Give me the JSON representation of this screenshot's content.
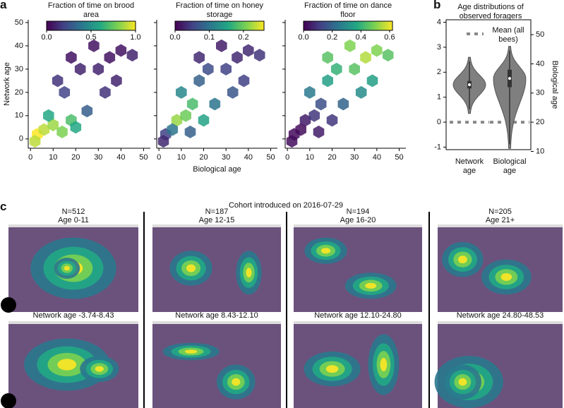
{
  "chart_data": [
    {
      "type": "hexbin",
      "colorbar_title": "Fraction of time on brood area",
      "ylabel": "Network age",
      "xlim": [
        -1,
        53
      ],
      "ylim": [
        -4,
        51.2
      ],
      "xticks": [
        0,
        10,
        20,
        30,
        40,
        50
      ],
      "yticks": [
        0,
        10,
        20,
        30,
        40,
        50
      ],
      "ytick_labels": true,
      "colormap": "viridis",
      "clim": [
        0,
        1
      ],
      "cticks": [
        {
          "value": 0,
          "label": "0.0"
        },
        0.5,
        {
          "value": 1,
          "label": "1.0"
        }
      ],
      "x": [
        3,
        6,
        10,
        14,
        18,
        8,
        20,
        25,
        15,
        30,
        35,
        40,
        22,
        28,
        45,
        12,
        38,
        2,
        33,
        18
      ],
      "y": [
        2,
        4,
        6,
        3,
        8,
        10,
        5,
        12,
        20,
        30,
        35,
        38,
        30,
        40,
        36,
        25,
        25,
        -1,
        20,
        35
      ],
      "values": [
        1.0,
        0.9,
        0.85,
        0.8,
        0.7,
        0.6,
        0.6,
        0.3,
        0.2,
        0.1,
        0.05,
        0.05,
        0.1,
        0.05,
        0.1,
        0.15,
        0.1,
        0.9,
        0.15,
        0.05
      ]
    },
    {
      "type": "hexbin",
      "colorbar_title": "Fraction of time on honey storage",
      "xlabel": "Biological age",
      "xlim": [
        -1,
        53
      ],
      "ylim": [
        -4,
        51.2
      ],
      "xticks": [
        0,
        10,
        20,
        30,
        40,
        50
      ],
      "yticks": [
        0,
        10,
        20,
        30,
        40,
        50
      ],
      "ytick_labels": false,
      "colormap": "viridis",
      "clim": [
        0,
        0.26
      ],
      "cticks": [
        {
          "value": 0,
          "label": "0.0"
        },
        0.1,
        0.2
      ],
      "x": [
        3,
        8,
        12,
        15,
        10,
        20,
        25,
        6,
        18,
        30,
        35,
        40,
        22,
        28,
        45,
        14,
        38,
        2,
        33,
        18
      ],
      "y": [
        2,
        8,
        10,
        15,
        20,
        8,
        15,
        4,
        25,
        30,
        35,
        38,
        30,
        40,
        36,
        3,
        25,
        -1,
        20,
        35
      ],
      "values": [
        0.05,
        0.22,
        0.2,
        0.18,
        0.12,
        0.15,
        0.1,
        0.1,
        0.08,
        0.05,
        0.03,
        0.03,
        0.06,
        0.02,
        0.04,
        0.08,
        0.05,
        0.03,
        0.07,
        0.03
      ]
    },
    {
      "type": "hexbin",
      "colorbar_title": "Fraction of time on dance floor",
      "xlim": [
        -1,
        53
      ],
      "ylim": [
        -4,
        51.2
      ],
      "xticks": [
        0,
        10,
        20,
        30,
        40,
        50
      ],
      "yticks": [
        0,
        10,
        20,
        30,
        40,
        50
      ],
      "ytick_labels": false,
      "colormap": "viridis",
      "clim": [
        0,
        0.62
      ],
      "cticks": [
        {
          "value": 0,
          "label": "0.0"
        },
        0.2,
        0.4,
        0.6
      ],
      "x": [
        3,
        8,
        12,
        15,
        10,
        20,
        25,
        6,
        18,
        30,
        35,
        40,
        22,
        28,
        45,
        14,
        38,
        2,
        33,
        18
      ],
      "y": [
        2,
        8,
        10,
        15,
        20,
        8,
        15,
        4,
        25,
        30,
        35,
        38,
        30,
        40,
        36,
        3,
        25,
        -1,
        20,
        35
      ],
      "values": [
        0.02,
        0.05,
        0.1,
        0.15,
        0.25,
        0.1,
        0.2,
        0.02,
        0.35,
        0.45,
        0.55,
        0.5,
        0.4,
        0.5,
        0.45,
        0.05,
        0.35,
        0.02,
        0.3,
        0.45
      ]
    },
    {
      "type": "violin",
      "title": "Age distributions of observed foragers",
      "y2label": "Biological age",
      "categories": [
        "Network age",
        "Biological age"
      ],
      "color": "#7f7f7f",
      "ylim": [
        -1.1,
        4.1
      ],
      "yticks": [
        -1,
        0,
        1,
        2,
        3,
        4
      ],
      "y2lim": [
        10.6,
        55.1
      ],
      "y2ticks": [
        10,
        20,
        30,
        40,
        50
      ],
      "series": [
        {
          "axis": "y",
          "min": 0.35,
          "q1": 1.35,
          "median": 1.5,
          "q3": 1.65,
          "max": 2.6
        },
        {
          "axis": "y2",
          "min": 11,
          "q1": 32,
          "median": 35,
          "q3": 38,
          "max": 46
        }
      ],
      "means": [
        0,
        20
      ],
      "mean_label": "Mean (all bees)"
    }
  ],
  "panel_labels": [
    "a",
    "b",
    "c"
  ],
  "cohort": {
    "title": "Cohort introduced on 2016-07-29",
    "top_titles": [
      [
        "N=512",
        "Age 0-11"
      ],
      [
        "N=187",
        "Age 12-15"
      ],
      [
        "N=194",
        "Age 16-20"
      ],
      [
        "N=205",
        "Age 21+"
      ]
    ],
    "bottom_titles": [
      "Network age -3.74-8.43",
      "Network age 8.43-12.10",
      "Network age 12.10-24.80",
      "Network age 24.80-48.53"
    ]
  }
}
